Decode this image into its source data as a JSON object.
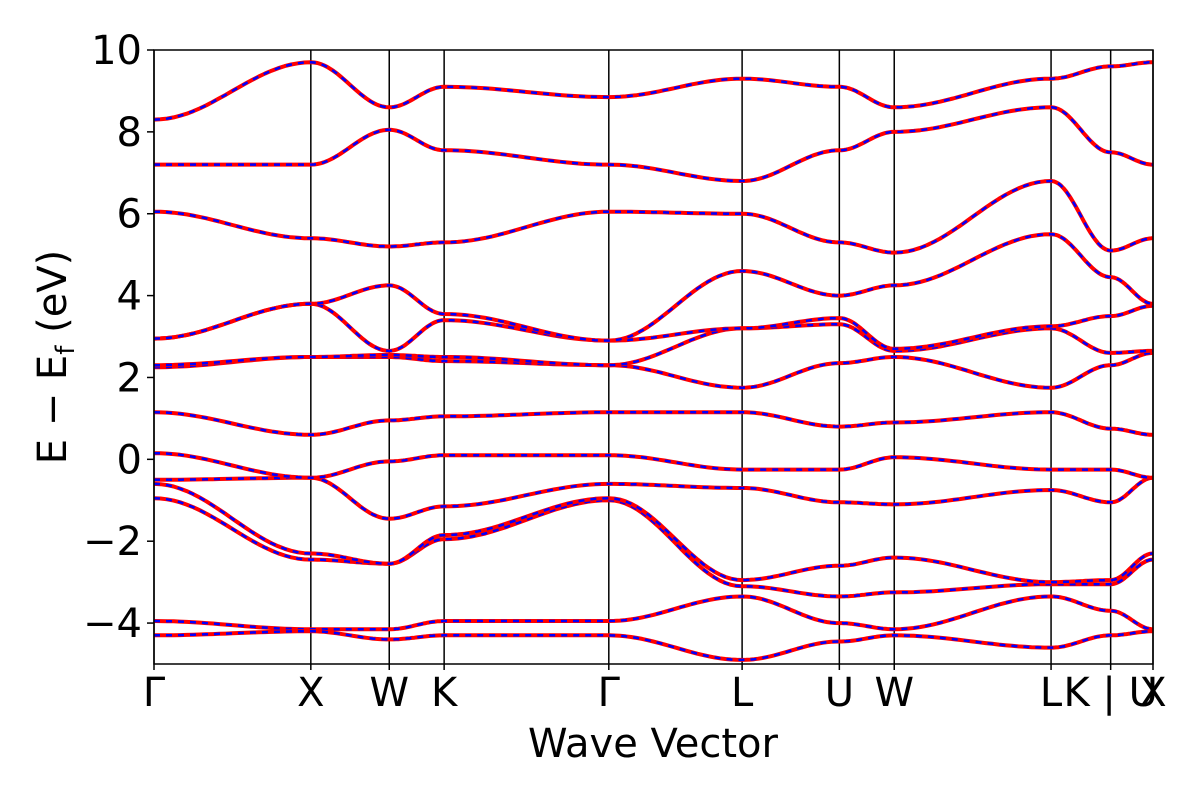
{
  "chart_data": {
    "type": "line",
    "xlabel": "Wave Vector",
    "ylabel": "E − E",
    "ylabel_sub": "f",
    "ylabel_unit": " (eV)",
    "ylim": [
      -5,
      10
    ],
    "yticks": [
      {
        "value": -4,
        "label": "−4"
      },
      {
        "value": -2,
        "label": "−2"
      },
      {
        "value": 0,
        "label": "0"
      },
      {
        "value": 2,
        "label": "2"
      },
      {
        "value": 4,
        "label": "4"
      },
      {
        "value": 6,
        "label": "6"
      },
      {
        "value": 8,
        "label": "8"
      },
      {
        "value": 10,
        "label": "10"
      }
    ],
    "kpath_lengths": [
      0.0,
      1.0,
      1.5,
      1.85,
      2.9,
      3.75,
      4.37,
      4.72,
      5.72,
      6.1,
      6.1,
      6.37
    ],
    "high_symmetry_points": [
      {
        "label": "Γ",
        "position": 0.0
      },
      {
        "label": "X",
        "position": 1.0
      },
      {
        "label": "W",
        "position": 1.5
      },
      {
        "label": "K",
        "position": 1.85
      },
      {
        "label": "Γ",
        "position": 2.9
      },
      {
        "label": "L",
        "position": 3.75
      },
      {
        "label": "U",
        "position": 4.37
      },
      {
        "label": "W",
        "position": 4.72
      },
      {
        "label": "L",
        "position": 5.72
      },
      {
        "label": "K | U",
        "position": 6.1
      },
      {
        "label": "X",
        "position": 6.37
      }
    ],
    "series_styles": [
      {
        "color": "#ff0000",
        "style": "solid"
      },
      {
        "color": "#0000ff",
        "style": "dashed"
      }
    ],
    "bands": [
      [
        -0.95,
        -2.45,
        -2.55,
        -1.95,
        -1.0,
        -3.1,
        -3.35,
        -3.25,
        -3.05,
        -3.05,
        -3.05,
        -2.45
      ],
      [
        -0.6,
        -2.3,
        -2.55,
        -1.85,
        -0.95,
        -2.95,
        -2.6,
        -2.4,
        -3.0,
        -2.95,
        -2.95,
        -2.3
      ],
      [
        -0.5,
        -0.45,
        -1.45,
        -1.15,
        -0.6,
        -0.7,
        -1.05,
        -1.1,
        -0.75,
        -1.05,
        -1.05,
        -0.45
      ],
      [
        0.15,
        -0.45,
        -0.05,
        0.1,
        0.1,
        -0.25,
        -0.25,
        0.05,
        -0.25,
        -0.25,
        -0.25,
        -0.45
      ],
      [
        1.15,
        0.6,
        0.95,
        1.05,
        1.15,
        1.15,
        0.8,
        0.9,
        1.15,
        0.75,
        0.75,
        0.6
      ],
      [
        2.25,
        2.5,
        2.5,
        2.4,
        2.3,
        1.75,
        2.35,
        2.5,
        1.75,
        2.3,
        2.3,
        2.6
      ],
      [
        2.3,
        2.5,
        2.55,
        2.5,
        2.3,
        3.2,
        3.3,
        2.65,
        3.2,
        2.6,
        2.6,
        2.65
      ],
      [
        2.95,
        3.8,
        2.65,
        3.4,
        2.9,
        3.2,
        3.45,
        2.7,
        3.25,
        3.5,
        3.5,
        3.75
      ],
      [
        2.95,
        3.8,
        4.25,
        3.55,
        2.9,
        4.6,
        4.0,
        4.25,
        5.5,
        4.45,
        4.45,
        3.8
      ],
      [
        6.05,
        5.4,
        5.2,
        5.3,
        6.05,
        6.0,
        5.3,
        5.05,
        6.8,
        5.1,
        5.1,
        5.4
      ],
      [
        7.2,
        7.2,
        8.05,
        7.55,
        7.2,
        6.8,
        7.55,
        8.0,
        8.6,
        7.5,
        7.5,
        7.2
      ],
      [
        8.3,
        9.7,
        8.6,
        9.1,
        8.85,
        9.3,
        9.1,
        8.6,
        9.3,
        9.6,
        9.6,
        9.7
      ],
      [
        -3.95,
        -4.15,
        -4.15,
        -3.95,
        -3.95,
        -3.35,
        -4.0,
        -4.15,
        -3.35,
        -3.7,
        -3.7,
        -4.15
      ],
      [
        -4.3,
        -4.2,
        -4.4,
        -4.3,
        -4.3,
        -4.9,
        -4.45,
        -4.3,
        -4.6,
        -4.3,
        -4.3,
        -4.2
      ]
    ]
  }
}
